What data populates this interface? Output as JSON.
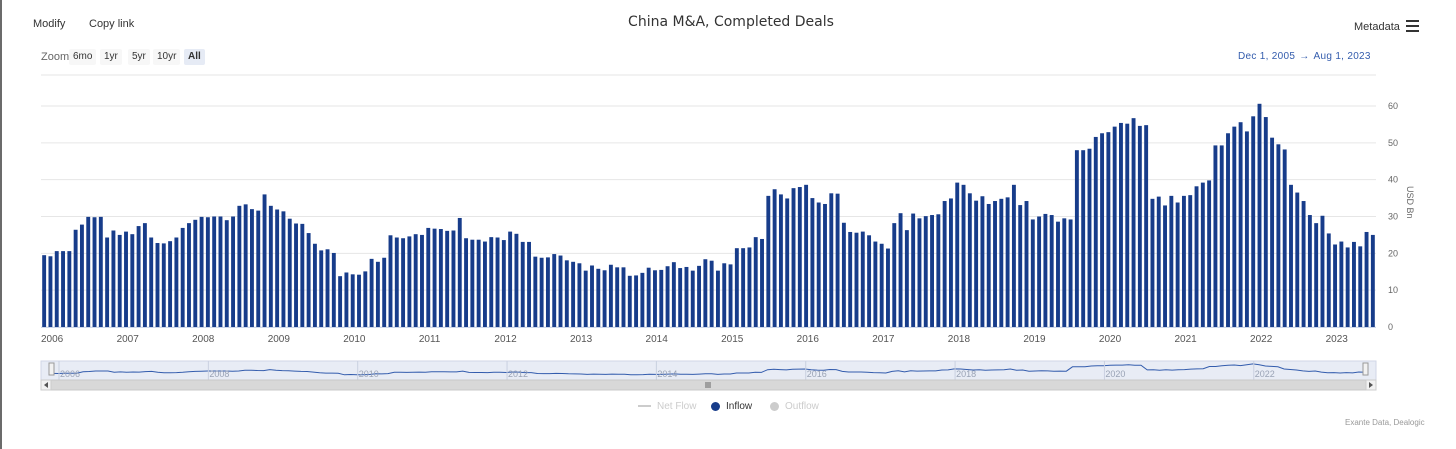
{
  "toolbar": {
    "modify_label": "Modify",
    "copy_link_label": "Copy link",
    "metadata_label": "Metadata"
  },
  "title": "China M&A, Completed Deals",
  "zoom": {
    "label": "Zoom",
    "buttons": [
      "6mo",
      "1yr",
      "5yr",
      "10yr",
      "All"
    ],
    "selected": "All"
  },
  "range": {
    "from": "Dec 1, 2005",
    "arrow": "→",
    "to": "Aug 1, 2023"
  },
  "legend": [
    {
      "name": "Net Flow",
      "color": "#cccccc",
      "active": false
    },
    {
      "name": "Inflow",
      "color": "#173c8a",
      "active": true
    },
    {
      "name": "Outflow",
      "color": "#cccccc",
      "active": false
    }
  ],
  "source": "Exante Data, Dealogic",
  "chart_data": {
    "type": "bar",
    "start": "2006-01",
    "frequency": "monthly",
    "color": "#173c8a",
    "ylabel": "USD Bn",
    "ylim": [
      0,
      60
    ],
    "yticks": [
      0,
      10,
      20,
      30,
      40,
      50,
      60
    ],
    "xticks": [
      "2006",
      "2007",
      "2008",
      "2009",
      "2010",
      "2011",
      "2012",
      "2013",
      "2014",
      "2015",
      "2016",
      "2017",
      "2018",
      "2019",
      "2020",
      "2021",
      "2022",
      "2023"
    ],
    "navigator_ticks": [
      "2006",
      "2008",
      "2010",
      "2012",
      "2014",
      "2016",
      "2018",
      "2020",
      "2022"
    ],
    "values": [
      19.5,
      19.2,
      20.6,
      20.6,
      20.6,
      26.4,
      27.8,
      29.9,
      29.8,
      29.9,
      24.3,
      26.2,
      25.0,
      25.9,
      25.2,
      27.4,
      28.2,
      24.3,
      22.8,
      22.7,
      23.3,
      24.3,
      26.9,
      28.2,
      29.1,
      29.9,
      29.8,
      30.0,
      30.0,
      29.0,
      30.0,
      32.9,
      33.3,
      32.0,
      31.6,
      36.0,
      32.9,
      31.9,
      31.4,
      29.4,
      28.1,
      28.0,
      25.5,
      22.6,
      20.8,
      21.1,
      20.1,
      13.8,
      14.8,
      14.3,
      14.2,
      15.1,
      18.5,
      17.7,
      18.8,
      24.9,
      24.3,
      24.1,
      24.6,
      25.2,
      25.0,
      26.9,
      26.7,
      26.6,
      26.1,
      26.2,
      29.6,
      24.1,
      23.7,
      23.7,
      23.2,
      24.4,
      24.3,
      23.6,
      25.9,
      25.3,
      23.1,
      23.1,
      19.1,
      18.8,
      18.9,
      19.8,
      19.4,
      18.1,
      17.7,
      17.3,
      15.3,
      16.7,
      15.8,
      15.4,
      16.9,
      16.2,
      16.2,
      13.9,
      14.0,
      14.7,
      16.1,
      15.4,
      15.5,
      16.5,
      17.6,
      16.0,
      16.3,
      15.3,
      16.6,
      18.4,
      18.0,
      15.3,
      17.3,
      17.0,
      21.4,
      21.4,
      21.6,
      24.4,
      23.9,
      35.6,
      37.4,
      36.0,
      34.9,
      37.7,
      38.0,
      38.6,
      35.0,
      33.8,
      33.4,
      36.3,
      36.2,
      28.3,
      25.8,
      25.6,
      25.9,
      24.9,
      23.2,
      22.6,
      21.3,
      28.2,
      30.9,
      26.3,
      30.8,
      29.5,
      30.1,
      30.4,
      30.6,
      34.2,
      34.9,
      39.2,
      38.6,
      36.3,
      34.3,
      35.5,
      33.4,
      34.2,
      34.8,
      35.2,
      38.6,
      33.1,
      34.2,
      29.2,
      30.0,
      30.7,
      30.4,
      28.6,
      29.5,
      29.2,
      48.0,
      48.0,
      48.4,
      51.6,
      52.6,
      52.9,
      54.4,
      55.4,
      55.2,
      56.7,
      54.6,
      54.8,
      34.8,
      35.4,
      33.0,
      35.6,
      33.8,
      35.6,
      35.8,
      38.2,
      39.2,
      39.8,
      49.3,
      49.3,
      52.6,
      54.4,
      55.6,
      53.1,
      57.2,
      60.6,
      57.0,
      51.4,
      49.6,
      48.2,
      38.6,
      36.5,
      34.2,
      30.4,
      28.2,
      30.2,
      25.4,
      22.4,
      23.2,
      21.6,
      23.1,
      21.9,
      25.8,
      25.0
    ]
  }
}
